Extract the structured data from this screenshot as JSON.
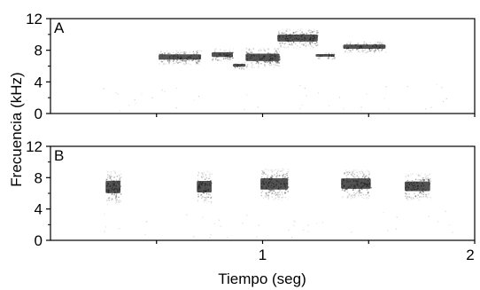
{
  "chart_data": [
    {
      "type": "spectrogram",
      "panel_label": "A",
      "ylabel": "Frecuencia (kHz)",
      "y_unit": "kHz",
      "ylim": [
        0,
        12
      ],
      "y_ticks": [
        0,
        4,
        8,
        12
      ],
      "y_tick_labels": [
        "0",
        "4",
        "8",
        "12"
      ],
      "xlim": [
        0,
        2
      ],
      "notes": [
        {
          "t_start": 0.51,
          "t_end": 0.71,
          "f_low": 6.2,
          "f_high": 8.1
        },
        {
          "t_start": 0.76,
          "t_end": 0.86,
          "f_low": 6.6,
          "f_high": 8.3
        },
        {
          "t_start": 0.86,
          "t_end": 0.92,
          "f_low": 5.6,
          "f_high": 6.6
        },
        {
          "t_start": 0.92,
          "t_end": 1.08,
          "f_low": 5.8,
          "f_high": 8.4
        },
        {
          "t_start": 1.07,
          "t_end": 1.26,
          "f_low": 8.3,
          "f_high": 10.8
        },
        {
          "t_start": 1.25,
          "t_end": 1.34,
          "f_low": 6.9,
          "f_high": 7.8
        },
        {
          "t_start": 1.38,
          "t_end": 1.58,
          "f_low": 7.7,
          "f_high": 9.2
        }
      ]
    },
    {
      "type": "spectrogram",
      "panel_label": "B",
      "ylabel": "Frecuencia (kHz)",
      "y_unit": "kHz",
      "ylim": [
        0,
        12
      ],
      "y_ticks": [
        0,
        4,
        8,
        12
      ],
      "y_tick_labels": [
        "0",
        "4",
        "8",
        "12"
      ],
      "xlabel": "Tiempo (seg)",
      "x_unit": "seg",
      "xlim": [
        0,
        2
      ],
      "x_ticks": [
        1,
        2
      ],
      "x_tick_labels": [
        "1",
        "2"
      ],
      "notes": [
        {
          "t_start": 0.26,
          "t_end": 0.33,
          "f_low": 4.6,
          "f_high": 9.0
        },
        {
          "t_start": 0.69,
          "t_end": 0.76,
          "f_low": 4.8,
          "f_high": 8.9
        },
        {
          "t_start": 0.99,
          "t_end": 1.12,
          "f_low": 5.2,
          "f_high": 9.2
        },
        {
          "t_start": 1.37,
          "t_end": 1.51,
          "f_low": 5.4,
          "f_high": 9.1
        },
        {
          "t_start": 1.67,
          "t_end": 1.79,
          "f_low": 5.2,
          "f_high": 8.6
        }
      ]
    }
  ],
  "colors": {
    "ink": "#000000",
    "note": "#1a1a1a",
    "background": "#ffffff"
  }
}
